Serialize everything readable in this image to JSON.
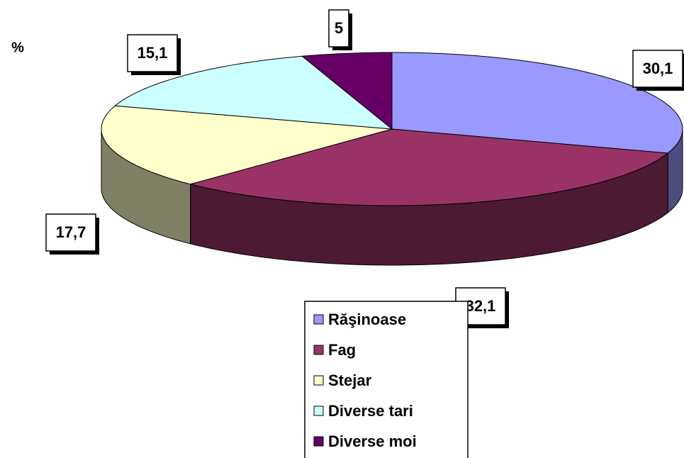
{
  "chart_data": {
    "type": "pie",
    "unit_label": "%",
    "categories": [
      "Răşinoase",
      "Fag",
      "Stejar",
      "Diverse tari",
      "Diverse moi"
    ],
    "values": [
      30.1,
      32.1,
      17.7,
      15.1,
      5
    ],
    "value_labels": [
      "30,1",
      "32,1",
      "17,7",
      "15,1",
      "5"
    ],
    "colors": [
      "#9999ff",
      "#993366",
      "#ffffcc",
      "#ccffff",
      "#660066"
    ]
  }
}
